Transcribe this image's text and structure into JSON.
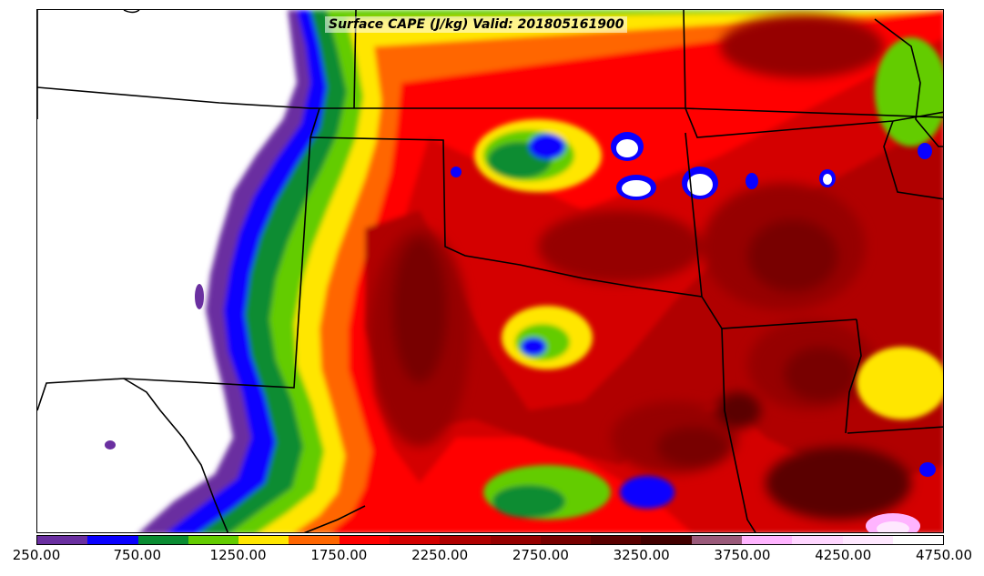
{
  "title": "Surface CAPE (J/kg) Valid: 201805161900",
  "colorbar": {
    "min": 250,
    "max": 4750,
    "colors": [
      "#6a2fa0",
      "#0a00ff",
      "#0a8c32",
      "#64cc00",
      "#ffe600",
      "#ff6600",
      "#ff0000",
      "#d40000",
      "#b00000",
      "#960000",
      "#780000",
      "#5a0000",
      "#420000",
      "#9a5a7a",
      "#ffb4ff",
      "#ffd6ff",
      "#ffe8ff",
      "#ffffff"
    ],
    "tick_labels": [
      "250.00",
      "750.00",
      "1250.00",
      "1750.00",
      "2250.00",
      "2750.00",
      "3250.00",
      "3750.00",
      "4250.00",
      "4750.00"
    ]
  }
}
